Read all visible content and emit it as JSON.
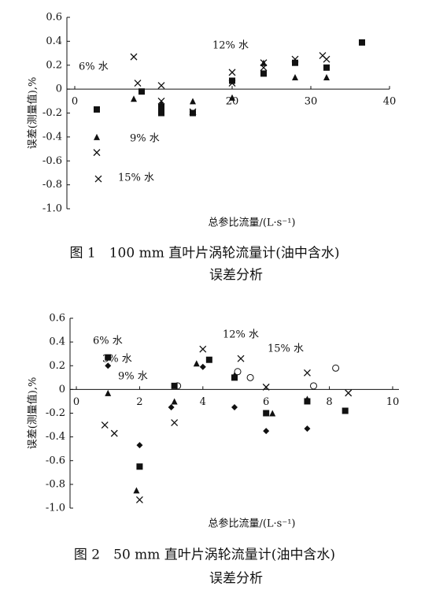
{
  "chart_data": [
    {
      "type": "scatter",
      "y_label": "误差(测量值),%",
      "x_label": "总参比流量/(L·s⁻¹)",
      "caption": [
        "图 1　100 mm 直叶片涡轮流量计(油中含水)",
        "误差分析"
      ],
      "xlim": [
        -1,
        40
      ],
      "ylim": [
        -1,
        0.6
      ],
      "xticks": [
        0,
        20,
        30,
        40
      ],
      "yticks": [
        0.6,
        0.4,
        0.2,
        0,
        -0.2,
        -0.4,
        -0.6,
        -0.8,
        {
          "value": -1,
          "label": "-1.0"
        }
      ],
      "series": [
        {
          "name": "6% 水",
          "marker": "square",
          "color": "#111",
          "x": [
            2.8,
            8.5,
            11,
            11,
            15,
            20,
            24,
            28,
            32,
            36.5
          ],
          "y": [
            -0.17,
            -0.02,
            -0.15,
            -0.2,
            -0.2,
            0.07,
            0.13,
            0.22,
            0.18,
            0.39
          ]
        },
        {
          "name": "9% 水",
          "marker": "triangle",
          "color": "#111",
          "x": [
            2.8,
            7.5,
            11,
            15,
            20,
            24,
            28,
            32
          ],
          "y": [
            -0.4,
            -0.08,
            -0.12,
            -0.1,
            -0.07,
            0.22,
            0.1,
            0.1
          ]
        },
        {
          "name": "12% 水",
          "marker": "x",
          "color": "#111",
          "x": [
            7.5,
            8,
            11,
            20,
            24,
            28,
            31.5
          ],
          "y": [
            0.27,
            0.05,
            0.03,
            0.14,
            0.22,
            0.25,
            0.28
          ]
        },
        {
          "name": "15% 水",
          "marker": "x",
          "color": "#111",
          "x": [
            3,
            2.8,
            11,
            15,
            20,
            24,
            32
          ],
          "y": [
            -0.75,
            -0.53,
            -0.1,
            -0.19,
            0.05,
            0.18,
            0.25
          ]
        }
      ]
    },
    {
      "type": "scatter",
      "y_label": "误差(测量值),%",
      "x_label": "总参比流量/(L·s⁻¹)",
      "caption": [
        "图 2　50 mm 直叶片涡轮流量计(油中含水)",
        "误差分析"
      ],
      "xlim": [
        -0.2,
        10.2
      ],
      "ylim": [
        -1,
        0.6
      ],
      "xticks": [
        0,
        2,
        4,
        6,
        8,
        10
      ],
      "yticks": [
        0.6,
        0.4,
        0.2,
        0,
        -0.2,
        -0.4,
        -0.6,
        -0.8,
        {
          "value": -1,
          "label": "-1.0"
        }
      ],
      "series": [
        {
          "name": "6% 水",
          "marker": "square",
          "color": "#111",
          "x": [
            1,
            2,
            3.1,
            4.2,
            5,
            6,
            7.3,
            8.5
          ],
          "y": [
            0.27,
            -0.65,
            0.03,
            0.25,
            0.1,
            -0.2,
            -0.1,
            -0.18
          ]
        },
        {
          "name": "3% 水",
          "marker": "diamond",
          "color": "#111",
          "x": [
            1,
            2,
            3,
            4,
            5,
            6,
            7.3
          ],
          "y": [
            0.2,
            -0.47,
            -0.15,
            0.19,
            -0.15,
            -0.35,
            -0.33
          ]
        },
        {
          "name": "9% 水",
          "marker": "triangle",
          "color": "#111",
          "x": [
            1,
            1.9,
            3.1,
            3.8,
            5,
            6.2,
            7.3
          ],
          "y": [
            -0.03,
            -0.85,
            -0.1,
            0.22,
            0.12,
            -0.2,
            -0.08
          ]
        },
        {
          "name": "12% 水",
          "marker": "x",
          "color": "#111",
          "x": [
            0.9,
            1.2,
            2,
            3.1,
            4,
            5.2,
            6,
            7.3,
            8.6
          ],
          "y": [
            -0.3,
            -0.37,
            -0.93,
            -0.28,
            0.34,
            0.26,
            0.02,
            0.14,
            -0.03
          ]
        },
        {
          "name": "15% 水",
          "marker": "circle",
          "color": "#111",
          "x": [
            3.2,
            5.1,
            5.5,
            7.5,
            8.2
          ],
          "y": [
            0.03,
            0.15,
            0.1,
            0.03,
            0.18
          ]
        }
      ]
    }
  ]
}
